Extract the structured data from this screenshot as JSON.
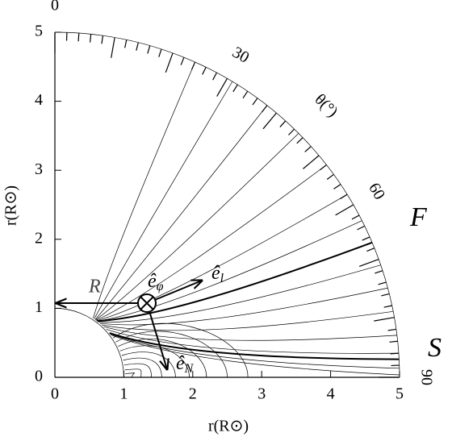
{
  "chart_data": {
    "type": "field-lines",
    "xlabel": "r(R⊙)",
    "ylabel": "r(R⊙)",
    "xlim": [
      0,
      5
    ],
    "ylim": [
      0,
      5
    ],
    "xticks": [
      0,
      1,
      2,
      3,
      4,
      5
    ],
    "yticks": [
      0,
      1,
      2,
      3,
      4,
      5
    ],
    "thetaticks": [
      0,
      30,
      60,
      90
    ],
    "thetalabel": "θ(°)",
    "annotations": {
      "F": "F",
      "S": "S",
      "R": "R"
    },
    "vectors": {
      "phi": {
        "base": "ê",
        "sub": "φ"
      },
      "l": {
        "base": "ê",
        "sub": "l"
      },
      "N": {
        "base": "ê",
        "sub": "N"
      }
    }
  }
}
